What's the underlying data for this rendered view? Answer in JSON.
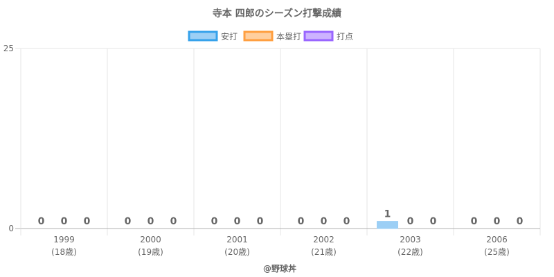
{
  "chart_data": {
    "type": "bar",
    "title": "寺本 四郎のシーズン打撃成績",
    "categories": [
      "1999",
      "2000",
      "2001",
      "2002",
      "2003",
      "2006"
    ],
    "sublabels": [
      "(18歳)",
      "(19歳)",
      "(20歳)",
      "(21歳)",
      "(22歳)",
      "(25歳)"
    ],
    "series": [
      {
        "name": "安打",
        "values": [
          0,
          0,
          0,
          0,
          1,
          0
        ],
        "fill": "#9ccff5",
        "stroke": "#36a2eb"
      },
      {
        "name": "本塁打",
        "values": [
          0,
          0,
          0,
          0,
          0,
          0
        ],
        "fill": "#ffcf9f",
        "stroke": "#ff9f40"
      },
      {
        "name": "打点",
        "values": [
          0,
          0,
          0,
          0,
          0,
          0
        ],
        "fill": "#cdb3ff",
        "stroke": "#9966ff"
      }
    ],
    "ylim": [
      0,
      25
    ],
    "yticks": [
      0,
      25
    ],
    "legend_position": "top",
    "grid": true,
    "data_labels": true,
    "credit": "@野球丼"
  }
}
